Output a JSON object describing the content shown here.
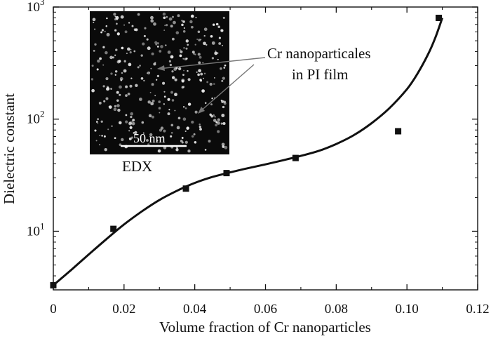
{
  "chart_data": {
    "type": "scatter",
    "xlabel": "Volume fraction of Cr nanoparticles",
    "ylabel": "Dielectric constant",
    "xlim": [
      0,
      0.12
    ],
    "ylim": [
      3,
      1000
    ],
    "y_scale": "log",
    "x_ticks": [
      "0",
      "0.02",
      "0.04",
      "0.06",
      "0.08",
      "0.10",
      "0.12"
    ],
    "y_ticks": [
      {
        "base": "10",
        "exp": "1"
      },
      {
        "base": "10",
        "exp": "2"
      },
      {
        "base": "10",
        "exp": "3"
      }
    ],
    "grid": false,
    "series": [
      {
        "style": "square-markers",
        "color": "#111111",
        "points": [
          {
            "x": 0.0,
            "y": 3.3
          },
          {
            "x": 0.017,
            "y": 10.5
          },
          {
            "x": 0.0375,
            "y": 24
          },
          {
            "x": 0.049,
            "y": 33
          },
          {
            "x": 0.0685,
            "y": 45
          },
          {
            "x": 0.0975,
            "y": 78
          },
          {
            "x": 0.109,
            "y": 800
          }
        ]
      },
      {
        "style": "fit-curve",
        "color": "#111111",
        "points": [
          {
            "x": 0.0,
            "y": 3.3
          },
          {
            "x": 0.005,
            "y": 4.5
          },
          {
            "x": 0.01,
            "y": 6.2
          },
          {
            "x": 0.015,
            "y": 8.5
          },
          {
            "x": 0.02,
            "y": 11.5
          },
          {
            "x": 0.025,
            "y": 15
          },
          {
            "x": 0.03,
            "y": 19
          },
          {
            "x": 0.035,
            "y": 23
          },
          {
            "x": 0.04,
            "y": 27
          },
          {
            "x": 0.045,
            "y": 30.5
          },
          {
            "x": 0.05,
            "y": 33.5
          },
          {
            "x": 0.055,
            "y": 36.5
          },
          {
            "x": 0.06,
            "y": 39.5
          },
          {
            "x": 0.065,
            "y": 43
          },
          {
            "x": 0.07,
            "y": 47
          },
          {
            "x": 0.075,
            "y": 52
          },
          {
            "x": 0.08,
            "y": 60
          },
          {
            "x": 0.085,
            "y": 72
          },
          {
            "x": 0.09,
            "y": 92
          },
          {
            "x": 0.095,
            "y": 125
          },
          {
            "x": 0.1,
            "y": 185
          },
          {
            "x": 0.103,
            "y": 255
          },
          {
            "x": 0.106,
            "y": 380
          },
          {
            "x": 0.108,
            "y": 530
          },
          {
            "x": 0.11,
            "y": 800
          }
        ]
      }
    ],
    "inset": {
      "annotation_line1": "Cr nanoparticales",
      "annotation_line2": "in PI film",
      "scale_bar_label": "50 nm",
      "caption": "EDX",
      "background_color": "#0a0a0a",
      "dot_color": "#e8e8e8"
    }
  }
}
